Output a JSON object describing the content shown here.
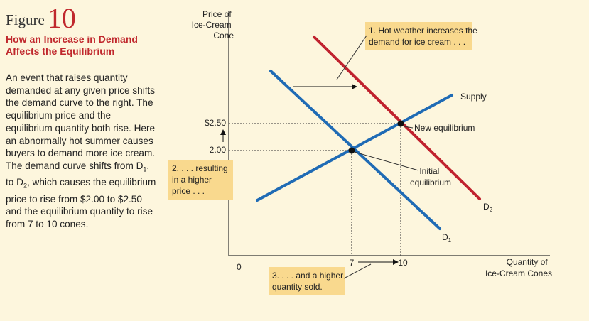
{
  "figure": {
    "label": "Figure",
    "number": "10",
    "title": "How an Increase in Demand Affects the Equilibrium",
    "body_1": "An event that raises quantity demanded at any given price shifts the demand curve to the right. The equilibrium price and the equilibrium quantity both rise. Here an abnormally hot summer causes buyers to demand more ice cream. The demand curve shifts from D",
    "body_sub1": "1",
    "body_mid": ", to D",
    "body_sub2": "2",
    "body_2": ", which causes the equilibrium price to rise from $2.00 to $2.50 and the equilibrium quantity to rise from 7 to 10 cones."
  },
  "diagram": {
    "y_axis_label": [
      "Price of",
      "Ice-Cream",
      "Cone"
    ],
    "x_axis_label": [
      "Quantity of",
      "Ice-Cream Cones"
    ],
    "origin": "0",
    "price_high": "$2.50",
    "price_low": "2.00",
    "qty_low": "7",
    "qty_high": "10",
    "supply_label": "Supply",
    "d1_label": "D",
    "d1_sub": "1",
    "d2_label": "D",
    "d2_sub": "2",
    "new_eq_label": "New equilibrium",
    "initial_eq_label": [
      "Initial",
      "equilibrium"
    ],
    "note_1": [
      "1. Hot weather increases the",
      "demand for ice cream . . ."
    ],
    "note_2": [
      "2. . . . resulting",
      "in a higher",
      "price . . ."
    ],
    "note_3": [
      "3. . . . and a higher",
      "quantity sold."
    ],
    "colors": {
      "background": "#fdf6dd",
      "supply": "#1f6bb5",
      "demand_1": "#1f6bb5",
      "demand_2": "#c0222e",
      "note_fill": "#f9d98e",
      "title": "#c0282d"
    }
  }
}
